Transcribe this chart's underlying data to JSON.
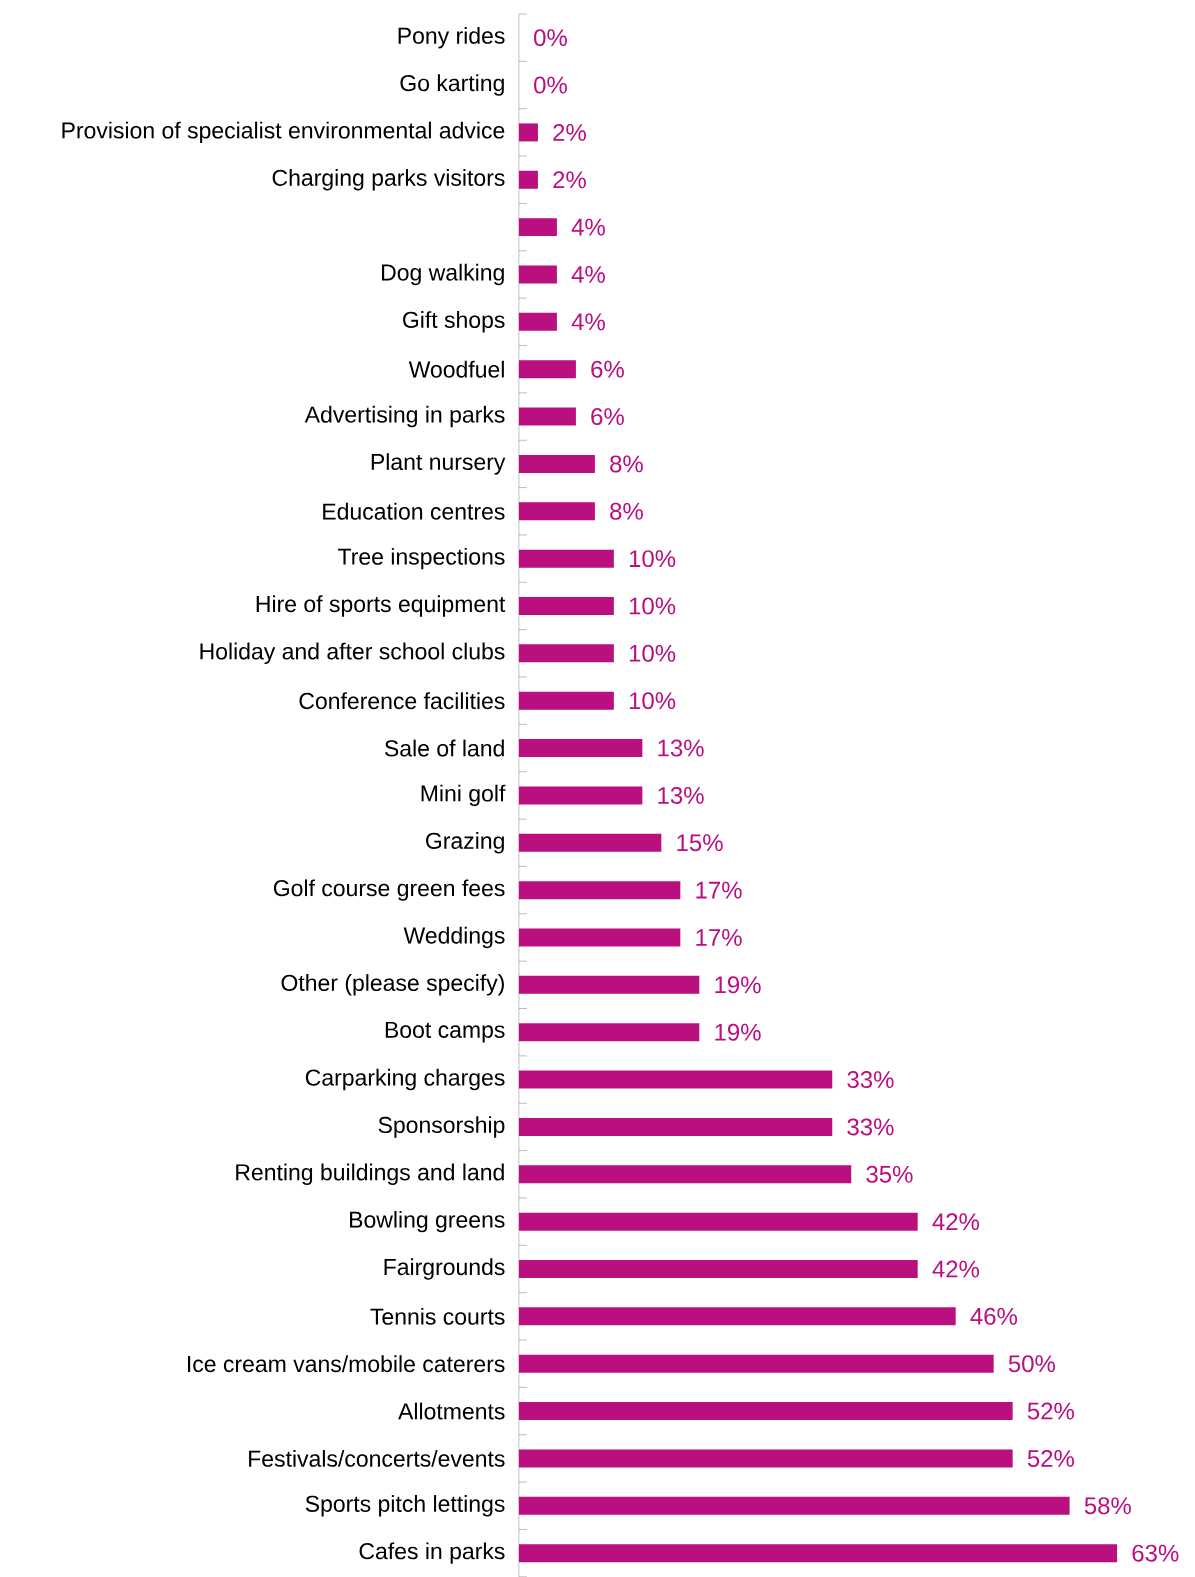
{
  "chart_data": {
    "type": "bar",
    "orientation": "horizontal",
    "color": "#ba0f7f",
    "categories": [
      "Pony rides",
      "Go karting",
      "Provision of specialist environmental advice",
      "Charging parks visitors",
      null,
      "Dog walking",
      "Gift shops",
      "Woodfuel",
      "Advertising in parks",
      "Plant nursery",
      "Education centres",
      "Tree inspections",
      "Hire of sports equipment",
      "Holiday and after school clubs",
      "Conference facilities",
      "Sale of land",
      "Mini golf",
      "Grazing",
      "Golf course green fees",
      "Weddings",
      "Other (please specify)",
      "Boot camps",
      "Carparking charges",
      "Sponsorship",
      "Renting buildings and land",
      "Bowling greens",
      "Fairgrounds",
      "Tennis courts",
      "Ice cream vans/mobile caterers",
      "Allotments",
      "Festivals/concerts/events",
      "Sports pitch lettings",
      "Cafes in parks"
    ],
    "values": [
      0,
      0,
      2,
      2,
      4,
      4,
      4,
      6,
      6,
      8,
      8,
      10,
      10,
      10,
      10,
      13,
      13,
      15,
      17,
      17,
      19,
      19,
      33,
      33,
      35,
      42,
      42,
      46,
      50,
      52,
      52,
      58,
      63
    ],
    "value_labels": [
      "0%",
      "0%",
      "2%",
      "2%",
      "4%",
      "4%",
      "4%",
      "6%",
      "6%",
      "8%",
      "8%",
      "10%",
      "10%",
      "10%",
      "10%",
      "13%",
      "13%",
      "15%",
      "17%",
      "17%",
      "19%",
      "19%",
      "33%",
      "33%",
      "35%",
      "42%",
      "42%",
      "46%",
      "50%",
      "52%",
      "52%",
      "58%",
      "63%"
    ]
  }
}
